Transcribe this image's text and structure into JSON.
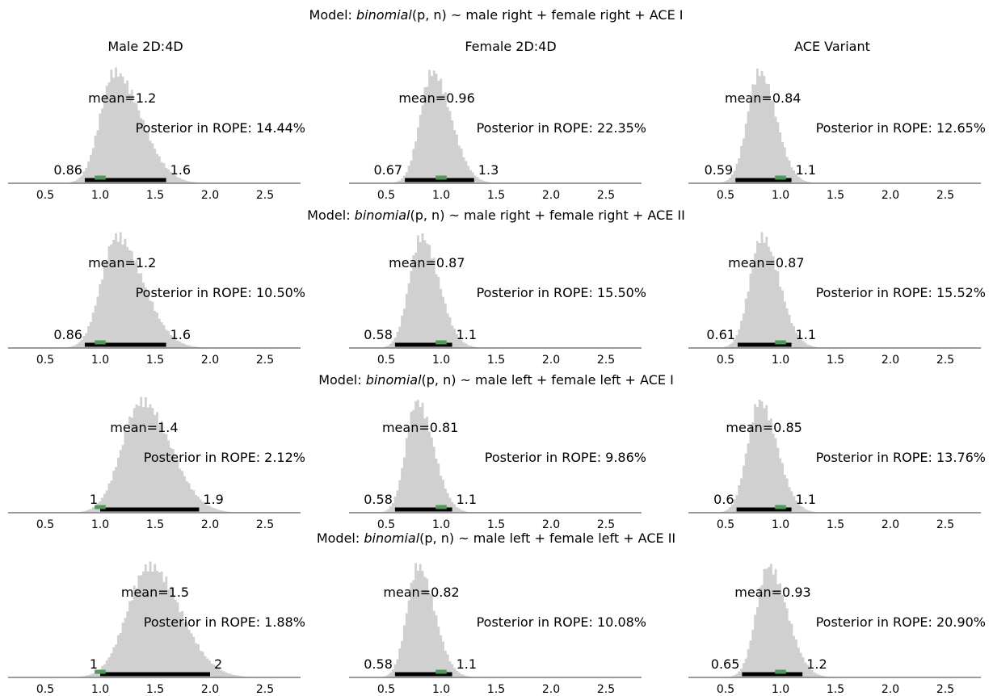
{
  "column_titles": [
    "Male 2D:4D",
    "Female 2D:4D",
    "ACE Variant"
  ],
  "colors": {
    "histogram": "#d0d0d0",
    "hdi_bar": "#000000",
    "rope_bar": "#4f9a5a",
    "axis": "#7a7a7a"
  },
  "chart_data": [
    {
      "type": "histogram",
      "model": {
        "prefix": "Model: ",
        "family": "binomial",
        "args": "(p, n)",
        "formula": " ~ male right + female right + ACE I"
      },
      "x_ticks": [
        "0.5",
        "1.0",
        "1.5",
        "2.0",
        "2.5"
      ],
      "xlim": [
        0.3,
        2.9
      ],
      "rope": [
        0.95,
        1.05
      ],
      "panels": [
        {
          "column": "Male 2D:4D",
          "mean": 1.2,
          "mean_label": "mean=1.2",
          "hdi": [
            0.86,
            1.6
          ],
          "hdi_labels": [
            "0.86",
            "1.6"
          ],
          "rope_pct": "Posterior in ROPE: 14.44%",
          "mode": 1.13,
          "sd_left": 0.13,
          "sd_right": 0.24
        },
        {
          "column": "Female 2D:4D",
          "mean": 0.96,
          "mean_label": "mean=0.96",
          "hdi": [
            0.67,
            1.3
          ],
          "hdi_labels": [
            "0.67",
            "1.3"
          ],
          "rope_pct": "Posterior in ROPE: 22.35%",
          "mode": 0.92,
          "sd_left": 0.11,
          "sd_right": 0.17
        },
        {
          "column": "ACE Variant",
          "mean": 0.84,
          "mean_label": "mean=0.84",
          "hdi": [
            0.59,
            1.1
          ],
          "hdi_labels": [
            "0.59",
            "1.1"
          ],
          "rope_pct": "Posterior in ROPE: 12.65%",
          "mode": 0.81,
          "sd_left": 0.11,
          "sd_right": 0.15
        }
      ]
    },
    {
      "type": "histogram",
      "model": {
        "prefix": "Model: ",
        "family": "binomial",
        "args": "(p, n)",
        "formula": " ~ male right + female right + ACE II"
      },
      "x_ticks": [
        "0.5",
        "1.0",
        "1.5",
        "2.0",
        "2.5"
      ],
      "xlim": [
        0.3,
        2.9
      ],
      "rope": [
        0.95,
        1.05
      ],
      "panels": [
        {
          "column": "Male 2D:4D",
          "mean": 1.2,
          "mean_label": "mean=1.2",
          "hdi": [
            0.86,
            1.6
          ],
          "hdi_labels": [
            "0.86",
            "1.6"
          ],
          "rope_pct": "Posterior in ROPE: 10.50%",
          "mode": 1.15,
          "sd_left": 0.14,
          "sd_right": 0.24
        },
        {
          "column": "Female 2D:4D",
          "mean": 0.87,
          "mean_label": "mean=0.87",
          "hdi": [
            0.58,
            1.1
          ],
          "hdi_labels": [
            "0.58",
            "1.1"
          ],
          "rope_pct": "Posterior in ROPE: 15.50%",
          "mode": 0.82,
          "sd_left": 0.11,
          "sd_right": 0.16
        },
        {
          "column": "ACE Variant",
          "mean": 0.87,
          "mean_label": "mean=0.87",
          "hdi": [
            0.61,
            1.1
          ],
          "hdi_labels": [
            "0.61",
            "1.1"
          ],
          "rope_pct": "Posterior in ROPE: 15.52%",
          "mode": 0.83,
          "sd_left": 0.11,
          "sd_right": 0.16
        }
      ]
    },
    {
      "type": "histogram",
      "model": {
        "prefix": "Model: ",
        "family": "binomial",
        "args": "(p, n)",
        "formula": " ~ male left + female left + ACE I"
      },
      "x_ticks": [
        "0.5",
        "1.0",
        "1.5",
        "2.0",
        "2.5"
      ],
      "xlim": [
        0.3,
        2.9
      ],
      "rope": [
        0.95,
        1.05
      ],
      "panels": [
        {
          "column": "Male 2D:4D",
          "mean": 1.4,
          "mean_label": "mean=1.4",
          "hdi": [
            1.0,
            1.9
          ],
          "hdi_labels": [
            "1",
            "1.9"
          ],
          "rope_pct": "Posterior in ROPE: 2.12%",
          "mode": 1.38,
          "sd_left": 0.18,
          "sd_right": 0.26
        },
        {
          "column": "Female 2D:4D",
          "mean": 0.81,
          "mean_label": "mean=0.81",
          "hdi": [
            0.58,
            1.1
          ],
          "hdi_labels": [
            "0.58",
            "1.1"
          ],
          "rope_pct": "Posterior in ROPE: 9.86%",
          "mode": 0.78,
          "sd_left": 0.1,
          "sd_right": 0.15
        },
        {
          "column": "ACE Variant",
          "mean": 0.85,
          "mean_label": "mean=0.85",
          "hdi": [
            0.6,
            1.1
          ],
          "hdi_labels": [
            "0.6",
            "1.1"
          ],
          "rope_pct": "Posterior in ROPE: 13.76%",
          "mode": 0.81,
          "sd_left": 0.11,
          "sd_right": 0.16
        }
      ]
    },
    {
      "type": "histogram",
      "model": {
        "prefix": "Model: ",
        "family": "binomial",
        "args": "(p, n)",
        "formula": " ~ male left + female left + ACE II"
      },
      "x_ticks": [
        "0.5",
        "1.0",
        "1.5",
        "2.0",
        "2.5"
      ],
      "xlim": [
        0.3,
        2.9
      ],
      "rope": [
        0.95,
        1.05
      ],
      "panels": [
        {
          "column": "Male 2D:4D",
          "mean": 1.5,
          "mean_label": "mean=1.5",
          "hdi": [
            1.0,
            2.0
          ],
          "hdi_labels": [
            "1",
            "2"
          ],
          "rope_pct": "Posterior in ROPE: 1.88%",
          "mode": 1.45,
          "sd_left": 0.2,
          "sd_right": 0.28
        },
        {
          "column": "Female 2D:4D",
          "mean": 0.82,
          "mean_label": "mean=0.82",
          "hdi": [
            0.58,
            1.1
          ],
          "hdi_labels": [
            "0.58",
            "1.1"
          ],
          "rope_pct": "Posterior in ROPE: 10.08%",
          "mode": 0.79,
          "sd_left": 0.1,
          "sd_right": 0.15
        },
        {
          "column": "ACE Variant",
          "mean": 0.93,
          "mean_label": "mean=0.93",
          "hdi": [
            0.65,
            1.2
          ],
          "hdi_labels": [
            "0.65",
            "1.2"
          ],
          "rope_pct": "Posterior in ROPE: 20.90%",
          "mode": 0.89,
          "sd_left": 0.11,
          "sd_right": 0.17
        }
      ]
    }
  ]
}
